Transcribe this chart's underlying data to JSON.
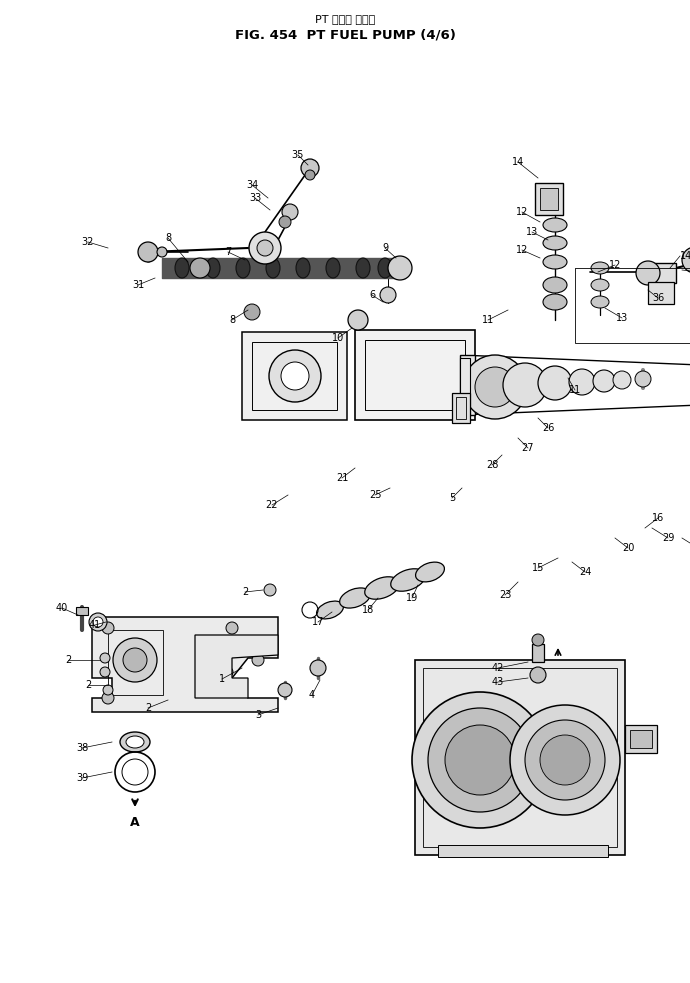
{
  "title_line1": "PT フェル ポンプ",
  "title_line2": "FIG. 454  PT FUEL PUMP (4/6)",
  "bg_color": "#ffffff",
  "fig_width": 6.9,
  "fig_height": 9.83,
  "dpi": 100
}
